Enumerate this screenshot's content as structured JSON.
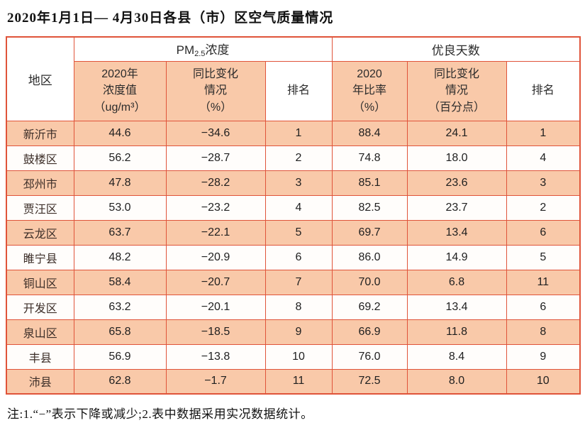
{
  "title": "2020年1月1日— 4月30日各县（市）区空气质量情况",
  "note": "注:1.“−”表示下降或减少;2.表中数据采用实况数据统计。",
  "colors": {
    "border": "#e0543a",
    "row_salmon": "#f9c9a9",
    "row_light": "#ffffff"
  },
  "table": {
    "group_headers": {
      "region": "地区",
      "pm_prefix": "PM",
      "pm_sub": "2.5",
      "pm_suffix": "浓度",
      "good_days": "优良天数"
    },
    "sub_headers": {
      "pm_value": "2020年\n浓度值\n（ug/m³）",
      "pm_change": "同比变化\n情况\n（%）",
      "pm_rank": "排名",
      "good_ratio": "2020\n年比率\n（%）",
      "ratio_change": "同比变化\n情况\n（百分点）",
      "ratio_rank": "排名"
    },
    "rows": [
      {
        "region": "新沂市",
        "pm_value": "44.6",
        "pm_change": "−34.6",
        "pm_rank": "1",
        "good_ratio": "88.4",
        "ratio_change": "24.1",
        "ratio_rank": "1"
      },
      {
        "region": "鼓楼区",
        "pm_value": "56.2",
        "pm_change": "−28.7",
        "pm_rank": "2",
        "good_ratio": "74.8",
        "ratio_change": "18.0",
        "ratio_rank": "4"
      },
      {
        "region": "邳州市",
        "pm_value": "47.8",
        "pm_change": "−28.2",
        "pm_rank": "3",
        "good_ratio": "85.1",
        "ratio_change": "23.6",
        "ratio_rank": "3"
      },
      {
        "region": "贾汪区",
        "pm_value": "53.0",
        "pm_change": "−23.2",
        "pm_rank": "4",
        "good_ratio": "82.5",
        "ratio_change": "23.7",
        "ratio_rank": "2"
      },
      {
        "region": "云龙区",
        "pm_value": "63.7",
        "pm_change": "−22.1",
        "pm_rank": "5",
        "good_ratio": "69.7",
        "ratio_change": "13.4",
        "ratio_rank": "6"
      },
      {
        "region": "睢宁县",
        "pm_value": "48.2",
        "pm_change": "−20.9",
        "pm_rank": "6",
        "good_ratio": "86.0",
        "ratio_change": "14.9",
        "ratio_rank": "5"
      },
      {
        "region": "铜山区",
        "pm_value": "58.4",
        "pm_change": "−20.7",
        "pm_rank": "7",
        "good_ratio": "70.0",
        "ratio_change": "6.8",
        "ratio_rank": "11"
      },
      {
        "region": "开发区",
        "pm_value": "63.2",
        "pm_change": "−20.1",
        "pm_rank": "8",
        "good_ratio": "69.2",
        "ratio_change": "13.4",
        "ratio_rank": "6"
      },
      {
        "region": "泉山区",
        "pm_value": "65.8",
        "pm_change": "−18.5",
        "pm_rank": "9",
        "good_ratio": "66.9",
        "ratio_change": "11.8",
        "ratio_rank": "8"
      },
      {
        "region": "丰县",
        "pm_value": "56.9",
        "pm_change": "−13.8",
        "pm_rank": "10",
        "good_ratio": "76.0",
        "ratio_change": "8.4",
        "ratio_rank": "9"
      },
      {
        "region": "沛县",
        "pm_value": "62.8",
        "pm_change": "−1.7",
        "pm_rank": "11",
        "good_ratio": "72.5",
        "ratio_change": "8.0",
        "ratio_rank": "10"
      }
    ]
  },
  "chart_data": {
    "type": "table",
    "title": "2020年1月1日— 4月30日各县（市）区空气质量情况",
    "column_groups": [
      "地区",
      "PM2.5浓度",
      "优良天数"
    ],
    "columns": [
      "地区",
      "2020年浓度值（ug/m³）",
      "同比变化情况（%）",
      "排名",
      "2020年比率（%）",
      "同比变化情况（百分点）",
      "排名"
    ],
    "rows": [
      [
        "新沂市",
        44.6,
        -34.6,
        1,
        88.4,
        24.1,
        1
      ],
      [
        "鼓楼区",
        56.2,
        -28.7,
        2,
        74.8,
        18.0,
        4
      ],
      [
        "邳州市",
        47.8,
        -28.2,
        3,
        85.1,
        23.6,
        3
      ],
      [
        "贾汪区",
        53.0,
        -23.2,
        4,
        82.5,
        23.7,
        2
      ],
      [
        "云龙区",
        63.7,
        -22.1,
        5,
        69.7,
        13.4,
        6
      ],
      [
        "睢宁县",
        48.2,
        -20.9,
        6,
        86.0,
        14.9,
        5
      ],
      [
        "铜山区",
        58.4,
        -20.7,
        7,
        70.0,
        6.8,
        11
      ],
      [
        "开发区",
        63.2,
        -20.1,
        8,
        69.2,
        13.4,
        6
      ],
      [
        "泉山区",
        65.8,
        -18.5,
        9,
        66.9,
        11.8,
        8
      ],
      [
        "丰县",
        56.9,
        -13.8,
        10,
        76.0,
        8.4,
        9
      ],
      [
        "沛县",
        62.8,
        -1.7,
        11,
        72.5,
        8.0,
        10
      ]
    ],
    "note": "注:1.“−”表示下降或减少;2.表中数据采用实况数据统计。"
  }
}
